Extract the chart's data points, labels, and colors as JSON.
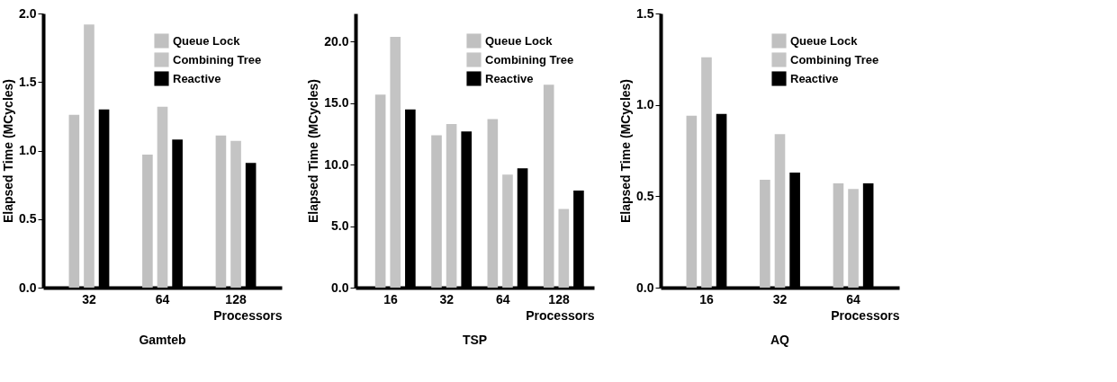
{
  "chart_data": [
    {
      "type": "bar",
      "title": "Gamteb",
      "xlabel": "Processors",
      "ylabel": "Elapsed Time (MCycles)",
      "categories": [
        "32",
        "64",
        "128"
      ],
      "series": [
        {
          "name": "Queue Lock",
          "color": "#c0c0c0",
          "values": [
            1.26,
            0.97,
            1.11
          ]
        },
        {
          "name": "Combining Tree",
          "color": "#c4c4c4",
          "values": [
            1.92,
            1.32,
            1.07
          ]
        },
        {
          "name": "Reactive",
          "color": "#000000",
          "values": [
            1.3,
            1.08,
            0.91
          ]
        }
      ],
      "ylim": [
        0,
        2
      ],
      "yticks": [
        {
          "value": 0,
          "label": "0.0"
        },
        {
          "value": 0.5,
          "label": "0.5"
        },
        {
          "value": 1,
          "label": "1.0"
        },
        {
          "value": 1.5,
          "label": "1.5"
        },
        {
          "value": 2,
          "label": "2.0"
        }
      ],
      "grid": false,
      "legend": "top right"
    },
    {
      "type": "bar",
      "title": "TSP",
      "xlabel": "Processors",
      "ylabel": "Elapsed Time (MCycles)",
      "categories": [
        "16",
        "32",
        "64",
        "128"
      ],
      "series": [
        {
          "name": "Queue Lock",
          "color": "#c0c0c0",
          "values": [
            15.7,
            12.4,
            13.7,
            16.5
          ]
        },
        {
          "name": "Combining Tree",
          "color": "#c4c4c4",
          "values": [
            20.4,
            13.3,
            9.2,
            6.4
          ]
        },
        {
          "name": "Reactive",
          "color": "#000000",
          "values": [
            14.5,
            12.7,
            9.7,
            7.9
          ]
        }
      ],
      "ylim": [
        0,
        22.3
      ],
      "yticks": [
        {
          "value": 0,
          "label": "0.0"
        },
        {
          "value": 5,
          "label": "5.0"
        },
        {
          "value": 10,
          "label": "10.0"
        },
        {
          "value": 15,
          "label": "15.0"
        },
        {
          "value": 20,
          "label": "20.0"
        }
      ],
      "grid": false,
      "legend": "top right"
    },
    {
      "type": "bar",
      "title": "AQ",
      "xlabel": "Processors",
      "ylabel": "Elapsed Time (MCycles)",
      "categories": [
        "16",
        "32",
        "64"
      ],
      "series": [
        {
          "name": "Queue Lock",
          "color": "#c0c0c0",
          "values": [
            0.94,
            0.59,
            0.57
          ]
        },
        {
          "name": "Combining Tree",
          "color": "#c4c4c4",
          "values": [
            1.26,
            0.84,
            0.54
          ]
        },
        {
          "name": "Reactive",
          "color": "#000000",
          "values": [
            0.95,
            0.63,
            0.57
          ]
        }
      ],
      "ylim": [
        0,
        1.5
      ],
      "yticks": [
        {
          "value": 0,
          "label": "0.0"
        },
        {
          "value": 0.5,
          "label": "0.5"
        },
        {
          "value": 1,
          "label": "1.0"
        },
        {
          "value": 1.5,
          "label": "1.5"
        }
      ],
      "grid": false,
      "legend": "top right"
    }
  ]
}
